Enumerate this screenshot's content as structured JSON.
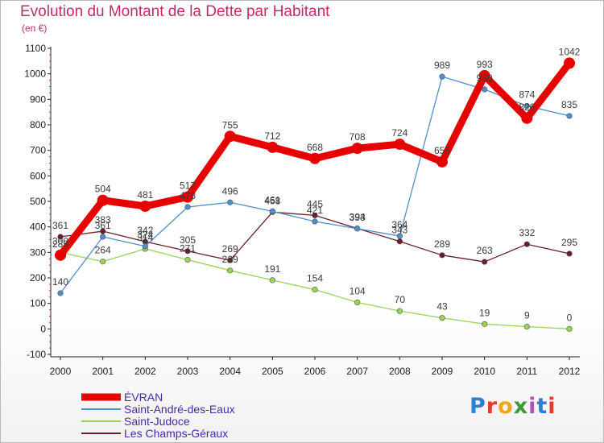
{
  "header": {
    "title": "Evolution du Montant de la Dette par Habitant",
    "subtitle": "(en €)"
  },
  "logo": {
    "text": "Proxiti",
    "letter_colors": [
      "#2e7fd3",
      "#e8392a",
      "#f6a31a",
      "#3c9a39",
      "#b44fb8",
      "#2e7fd3",
      "#e8392a"
    ]
  },
  "colors": {
    "title": "#c6296b",
    "evran": "#e60000",
    "saint_andre": "#4d8fcc",
    "saint_judoce": "#9ad456",
    "champs_geraux": "#6b1f2a"
  },
  "chart_data": {
    "type": "line",
    "title": "Evolution du Montant de la Dette par Habitant",
    "subtitle": "(en €)",
    "xlabel": "",
    "ylabel": "",
    "x": [
      "2000",
      "2001",
      "2002",
      "2003",
      "2004",
      "2005",
      "2006",
      "2007",
      "2008",
      "2009",
      "2010",
      "2011",
      "2012"
    ],
    "ylim": [
      -100,
      1100
    ],
    "yticks": [
      -100,
      0,
      100,
      200,
      300,
      400,
      500,
      600,
      700,
      800,
      900,
      1000,
      1100
    ],
    "grid": false,
    "legend": "bottom-left",
    "series": [
      {
        "name": "Les Champs-Géraux",
        "color": "#6b1f2a",
        "values": [
          361,
          383,
          342,
          305,
          269,
          458,
          445,
          394,
          343,
          289,
          263,
          332,
          295
        ],
        "labels": [
          "361",
          "383",
          "342",
          "305",
          "269",
          "458",
          "445",
          "394",
          "343",
          "289",
          "263",
          "332",
          "295"
        ]
      },
      {
        "name": "Saint-Judoce",
        "color": "#9ad456",
        "values": [
          300,
          264,
          314,
          271,
          229,
          191,
          154,
          104,
          70,
          43,
          19,
          9,
          0
        ],
        "labels": [
          "300",
          "264",
          "314",
          "271",
          "229",
          "191",
          "154",
          "104",
          "70",
          "43",
          "19",
          "9",
          "0"
        ]
      },
      {
        "name": "Saint-André-des-Eaux",
        "color": "#4d8fcc",
        "values": [
          140,
          361,
          324,
          478,
          496,
          461,
          421,
          393,
          364,
          989,
          939,
          874,
          835
        ],
        "labels": [
          "140",
          "361",
          "324",
          "478",
          "496",
          "461",
          "421",
          "393",
          "364",
          "989",
          "939",
          "874",
          "835"
        ]
      },
      {
        "name": "ÉVRAN",
        "color": "#e60000",
        "values": [
          289,
          504,
          481,
          517,
          755,
          712,
          668,
          708,
          724,
          655,
          993,
          826,
          1042
        ],
        "labels": [
          "289",
          "504",
          "481",
          "517",
          "755",
          "712",
          "668",
          "708",
          "724",
          "655",
          "993",
          "826",
          "1042"
        ]
      }
    ],
    "legend_order": [
      "ÉVRAN",
      "Saint-André-des-Eaux",
      "Saint-Judoce",
      "Les Champs-Géraux"
    ]
  }
}
